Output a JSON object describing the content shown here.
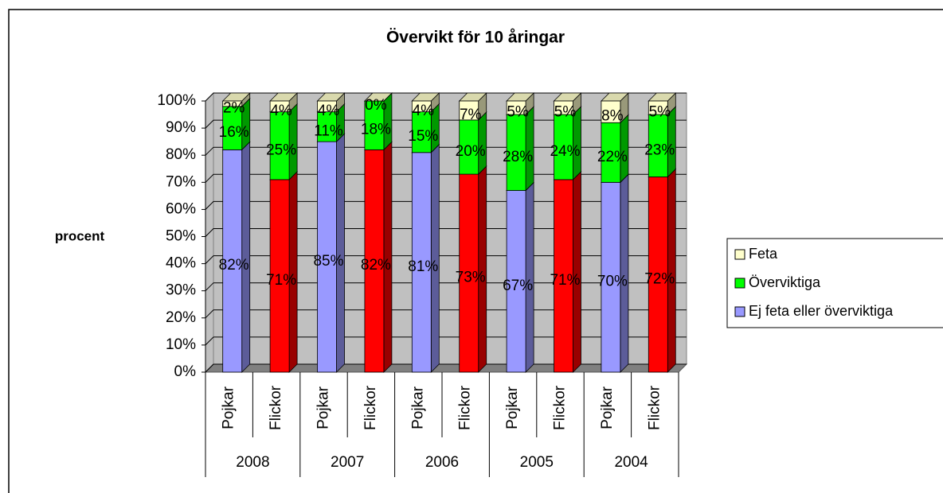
{
  "chart_data": {
    "type": "bar",
    "stacked": true,
    "title": "Övervikt för 10 åringar",
    "y_label": "procent",
    "categories": [
      "Pojkar",
      "Flickor",
      "Pojkar",
      "Flickor",
      "Pojkar",
      "Flickor",
      "Pojkar",
      "Flickor",
      "Pojkar",
      "Flickor"
    ],
    "category_groups": [
      "2008",
      "2007",
      "2006",
      "2005",
      "2004"
    ],
    "series": [
      {
        "name": "Ej feta eller överviktiga",
        "color": "#9999ff",
        "point_colors": [
          "#9999ff",
          "#ff0000",
          "#9999ff",
          "#ff0000",
          "#9999ff",
          "#ff0000",
          "#9999ff",
          "#ff0000",
          "#9999ff",
          "#ff0000"
        ],
        "values": [
          82,
          71,
          85,
          82,
          81,
          73,
          67,
          71,
          70,
          72
        ],
        "value_labels": [
          "82%",
          "71%",
          "85%",
          "82%",
          "81%",
          "73%",
          "67%",
          "71%",
          "70%",
          "72%"
        ]
      },
      {
        "name": "Överviktiga",
        "color": "#00ff00",
        "values": [
          16,
          25,
          11,
          18,
          15,
          20,
          28,
          24,
          22,
          23
        ],
        "value_labels": [
          "16%",
          "25%",
          "11%",
          "18%",
          "15%",
          "20%",
          "28%",
          "24%",
          "22%",
          "23%"
        ]
      },
      {
        "name": "Feta",
        "color": "#ffffcc",
        "values": [
          2,
          4,
          4,
          0,
          4,
          7,
          5,
          5,
          8,
          5
        ],
        "value_labels": [
          "2%",
          "4%",
          "4%",
          "0%",
          "4%",
          "7%",
          "5%",
          "5%",
          "8%",
          "5%"
        ]
      }
    ],
    "ylim": [
      0,
      100
    ],
    "yticks": [
      {
        "value": 0,
        "label": "0%"
      },
      {
        "value": 10,
        "label": "10%"
      },
      {
        "value": 20,
        "label": "20%"
      },
      {
        "value": 30,
        "label": "30%"
      },
      {
        "value": 40,
        "label": "40%"
      },
      {
        "value": 50,
        "label": "50%"
      },
      {
        "value": 60,
        "label": "60%"
      },
      {
        "value": 70,
        "label": "70%"
      },
      {
        "value": 80,
        "label": "80%"
      },
      {
        "value": 90,
        "label": "90%"
      },
      {
        "value": 100,
        "label": "100%"
      }
    ],
    "grid": true,
    "legend": "right"
  }
}
